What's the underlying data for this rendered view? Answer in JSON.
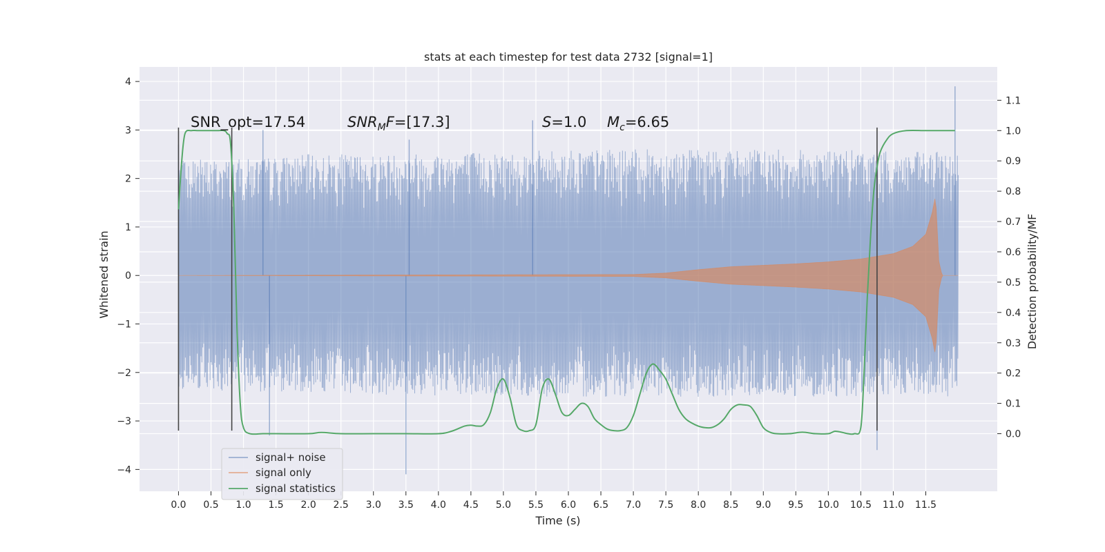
{
  "chart_data": {
    "type": "line",
    "title": "stats at each timestep for test data 2732 [signal=1]",
    "xlabel": "Time (s)",
    "ylabel_left": "Whitened strain",
    "ylabel_right": "Detection probability/MF",
    "xlim": [
      -0.6,
      12.6
    ],
    "ylim_left": [
      -4.45,
      4.3
    ],
    "ylim_right": [
      -0.19,
      1.21
    ],
    "x_ticks": [
      "0.0",
      "0.5",
      "1.0",
      "1.5",
      "2.0",
      "2.5",
      "3.0",
      "3.5",
      "4.0",
      "4.5",
      "5.0",
      "5.5",
      "6.0",
      "6.5",
      "7.0",
      "7.5",
      "8.0",
      "8.5",
      "9.0",
      "9.5",
      "10.0",
      "10.5",
      "11.0",
      "11.5"
    ],
    "y_ticks_left": [
      "−4",
      "−3",
      "−2",
      "−1",
      "0",
      "1",
      "2",
      "3",
      "4"
    ],
    "y_ticks_right": [
      "0.0",
      "0.1",
      "0.2",
      "0.3",
      "0.4",
      "0.5",
      "0.6",
      "0.7",
      "0.8",
      "0.9",
      "1.0",
      "1.1"
    ],
    "grid": true,
    "legend_position": "lower-left",
    "colors": {
      "signal_noise": "#4c72b0",
      "signal_only": "#dd8452",
      "statistics": "#55a868",
      "background": "#eaeaf2",
      "vline": "#444444"
    },
    "annotations": {
      "snr_opt": "SNR_opt=17.54",
      "snr_mf_prefix": "SNR",
      "snr_mf_sub": "M",
      "snr_mf_mid": "F",
      "snr_mf_value": "=[17.3]",
      "s_symbol": "S",
      "s_value": "=1.0",
      "mc_symbol": "M",
      "mc_sub": "c",
      "mc_value": "=6.65"
    },
    "vertical_lines_x": [
      0.0,
      0.82,
      10.75
    ],
    "series": [
      {
        "name": "signal+ noise",
        "axis": "left",
        "x_range": [
          0.0,
          12.0
        ],
        "envelope_upper": [
          [
            0.0,
            2.4
          ],
          [
            1.0,
            2.4
          ],
          [
            2.0,
            2.5
          ],
          [
            3.0,
            2.5
          ],
          [
            4.0,
            2.55
          ],
          [
            5.0,
            2.55
          ],
          [
            6.0,
            2.6
          ],
          [
            7.0,
            2.6
          ],
          [
            8.0,
            2.6
          ],
          [
            9.0,
            2.6
          ],
          [
            10.0,
            2.6
          ],
          [
            11.0,
            2.55
          ],
          [
            12.0,
            2.55
          ]
        ],
        "envelope_lower": [
          [
            0.0,
            -2.35
          ],
          [
            1.0,
            -2.4
          ],
          [
            2.0,
            -2.4
          ],
          [
            3.0,
            -2.45
          ],
          [
            4.0,
            -2.5
          ],
          [
            5.0,
            -2.5
          ],
          [
            6.0,
            -2.5
          ],
          [
            7.0,
            -2.5
          ],
          [
            8.0,
            -2.5
          ],
          [
            9.0,
            -2.5
          ],
          [
            10.0,
            -2.5
          ],
          [
            11.0,
            -2.5
          ],
          [
            12.0,
            -2.5
          ]
        ],
        "extremes": [
          [
            0.0,
            2.7
          ],
          [
            1.3,
            3.0
          ],
          [
            1.4,
            -3.3
          ],
          [
            3.5,
            -4.1
          ],
          [
            3.55,
            2.8
          ],
          [
            5.45,
            3.2
          ],
          [
            10.75,
            -3.6
          ],
          [
            11.95,
            3.9
          ]
        ]
      },
      {
        "name": "signal only",
        "axis": "left",
        "x_range": [
          0.0,
          12.0
        ],
        "envelope": [
          [
            0.0,
            0.0
          ],
          [
            7.0,
            0.02
          ],
          [
            7.5,
            0.05
          ],
          [
            8.0,
            0.12
          ],
          [
            8.5,
            0.18
          ],
          [
            9.0,
            0.21
          ],
          [
            9.5,
            0.24
          ],
          [
            10.0,
            0.28
          ],
          [
            10.5,
            0.34
          ],
          [
            11.0,
            0.45
          ],
          [
            11.3,
            0.6
          ],
          [
            11.5,
            0.85
          ],
          [
            11.6,
            1.3
          ],
          [
            11.65,
            1.65
          ],
          [
            11.7,
            0.3
          ],
          [
            11.75,
            0.0
          ],
          [
            12.0,
            0.0
          ]
        ]
      },
      {
        "name": "signal statistics",
        "axis": "right",
        "x": [
          0.0,
          0.05,
          0.1,
          0.2,
          0.3,
          0.4,
          0.5,
          0.6,
          0.7,
          0.75,
          0.8,
          0.85,
          0.9,
          0.95,
          1.0,
          1.1,
          1.3,
          1.5,
          2.0,
          2.2,
          2.5,
          3.0,
          3.5,
          4.0,
          4.2,
          4.4,
          4.5,
          4.6,
          4.7,
          4.8,
          4.9,
          5.0,
          5.1,
          5.2,
          5.3,
          5.4,
          5.5,
          5.6,
          5.7,
          5.8,
          5.9,
          6.0,
          6.1,
          6.2,
          6.3,
          6.4,
          6.5,
          6.6,
          6.7,
          6.8,
          6.9,
          7.0,
          7.1,
          7.2,
          7.3,
          7.4,
          7.5,
          7.6,
          7.7,
          7.8,
          7.9,
          8.0,
          8.1,
          8.2,
          8.3,
          8.4,
          8.5,
          8.6,
          8.7,
          8.8,
          8.9,
          9.0,
          9.1,
          9.2,
          9.4,
          9.6,
          9.8,
          10.0,
          10.1,
          10.2,
          10.3,
          10.4,
          10.5,
          10.55,
          10.6,
          10.65,
          10.7,
          10.75,
          10.8,
          10.9,
          11.0,
          11.2,
          11.5,
          11.8,
          11.95
        ],
        "y": [
          0.74,
          0.9,
          0.99,
          1.0,
          1.0,
          1.0,
          1.0,
          1.0,
          1.0,
          0.99,
          0.96,
          0.75,
          0.35,
          0.1,
          0.02,
          0.0,
          0.0,
          0.0,
          0.0,
          0.004,
          0.0,
          0.0,
          0.0,
          0.0,
          0.008,
          0.025,
          0.028,
          0.025,
          0.03,
          0.07,
          0.15,
          0.18,
          0.12,
          0.03,
          0.01,
          0.01,
          0.03,
          0.15,
          0.18,
          0.13,
          0.07,
          0.06,
          0.08,
          0.1,
          0.09,
          0.05,
          0.03,
          0.015,
          0.01,
          0.01,
          0.02,
          0.06,
          0.13,
          0.2,
          0.23,
          0.21,
          0.18,
          0.13,
          0.08,
          0.05,
          0.035,
          0.025,
          0.02,
          0.02,
          0.03,
          0.05,
          0.08,
          0.095,
          0.095,
          0.09,
          0.06,
          0.02,
          0.005,
          0.0,
          0.0,
          0.005,
          0.0,
          0.0,
          0.008,
          0.005,
          0.0,
          0.0,
          0.02,
          0.2,
          0.45,
          0.65,
          0.8,
          0.88,
          0.93,
          0.97,
          0.99,
          1.0,
          1.0,
          1.0,
          1.0
        ]
      }
    ]
  }
}
